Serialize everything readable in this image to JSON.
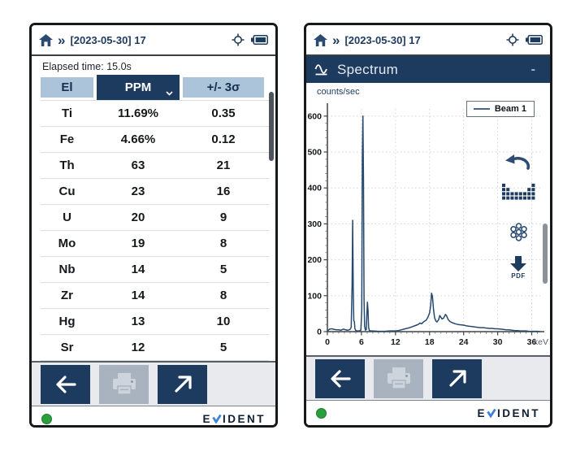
{
  "colors": {
    "navy": "#1d3a5f",
    "header_blue": "#abc4d9",
    "disabled_gray": "#a9b3c0",
    "green": "#2aa03c",
    "spectrum_line": "#27496f",
    "brand_check_blue": "#3b82d8"
  },
  "left_screen": {
    "top_bar": {
      "title": "[2023-05-30] 17"
    },
    "elapsed_time": "Elapsed time: 15.0s",
    "table": {
      "headers": {
        "el": "El",
        "ppm": "PPM",
        "sigma": "+/- 3σ"
      },
      "rows": [
        [
          "Ti",
          "11.69%",
          "0.35"
        ],
        [
          "Fe",
          "4.66%",
          "0.12"
        ],
        [
          "Th",
          "63",
          "21"
        ],
        [
          "Cu",
          "23",
          "16"
        ],
        [
          "U",
          "20",
          "9"
        ],
        [
          "Mo",
          "19",
          "8"
        ],
        [
          "Nb",
          "14",
          "5"
        ],
        [
          "Zr",
          "14",
          "8"
        ],
        [
          "Hg",
          "13",
          "10"
        ],
        [
          "Sr",
          "12",
          "5"
        ]
      ]
    }
  },
  "right_screen": {
    "top_bar": {
      "title": "[2023-05-30] 17"
    },
    "spectrum_header": {
      "title": "Spectrum",
      "minimize": "-"
    },
    "tools": {
      "pdf_label": "PDF"
    }
  },
  "footer": {
    "brand_prefix": "E",
    "brand_check": "V",
    "brand_suffix": "IDENT"
  },
  "chart_data": {
    "type": "line",
    "title": "Spectrum",
    "ylabel": "counts/sec",
    "xlabel": "keV",
    "xlim": [
      0,
      37.5
    ],
    "ylim": [
      0,
      620
    ],
    "xticks": [
      0,
      6,
      12,
      18,
      24,
      30,
      36
    ],
    "yticks": [
      0,
      100,
      200,
      300,
      400,
      500,
      600
    ],
    "grid": true,
    "legend": {
      "position": "top-right",
      "entries": [
        "Beam 1"
      ]
    },
    "series": [
      {
        "name": "Beam 1",
        "color": "#27496f",
        "points": [
          [
            0,
            2
          ],
          [
            0.4,
            7
          ],
          [
            0.8,
            8
          ],
          [
            1.2,
            6
          ],
          [
            1.6,
            5
          ],
          [
            2,
            5
          ],
          [
            2.4,
            4
          ],
          [
            2.8,
            7
          ],
          [
            3.2,
            5
          ],
          [
            3.6,
            4
          ],
          [
            4,
            6
          ],
          [
            4.2,
            12
          ],
          [
            4.35,
            130
          ],
          [
            4.45,
            310
          ],
          [
            4.55,
            120
          ],
          [
            4.65,
            30
          ],
          [
            4.75,
            28
          ],
          [
            4.85,
            8
          ],
          [
            5,
            3
          ],
          [
            5.3,
            2
          ],
          [
            5.6,
            2
          ],
          [
            5.9,
            4
          ],
          [
            6.05,
            60
          ],
          [
            6.15,
            480
          ],
          [
            6.25,
            600
          ],
          [
            6.35,
            430
          ],
          [
            6.45,
            90
          ],
          [
            6.55,
            15
          ],
          [
            6.7,
            4
          ],
          [
            6.85,
            6
          ],
          [
            6.95,
            50
          ],
          [
            7.05,
            82
          ],
          [
            7.15,
            60
          ],
          [
            7.25,
            12
          ],
          [
            7.4,
            3
          ],
          [
            7.6,
            2
          ],
          [
            8,
            2
          ],
          [
            9,
            1
          ],
          [
            10,
            1
          ],
          [
            11,
            2
          ],
          [
            12,
            2
          ],
          [
            12.5,
            3
          ],
          [
            13,
            5
          ],
          [
            13.5,
            7
          ],
          [
            14,
            9
          ],
          [
            14.5,
            11
          ],
          [
            15,
            14
          ],
          [
            15.5,
            17
          ],
          [
            16,
            20
          ],
          [
            16.3,
            24
          ],
          [
            16.6,
            22
          ],
          [
            17,
            28
          ],
          [
            17.4,
            32
          ],
          [
            17.7,
            40
          ],
          [
            18,
            52
          ],
          [
            18.2,
            75
          ],
          [
            18.35,
            107
          ],
          [
            18.5,
            98
          ],
          [
            18.7,
            60
          ],
          [
            18.9,
            38
          ],
          [
            19.1,
            30
          ],
          [
            19.3,
            27
          ],
          [
            19.6,
            33
          ],
          [
            19.8,
            45
          ],
          [
            20,
            40
          ],
          [
            20.2,
            35
          ],
          [
            20.5,
            38
          ],
          [
            20.8,
            48
          ],
          [
            21,
            44
          ],
          [
            21.3,
            33
          ],
          [
            21.6,
            28
          ],
          [
            22,
            25
          ],
          [
            22.5,
            22
          ],
          [
            23,
            20
          ],
          [
            23.5,
            19
          ],
          [
            24,
            18
          ],
          [
            24.5,
            16
          ],
          [
            25,
            15
          ],
          [
            25.5,
            14
          ],
          [
            26,
            13
          ],
          [
            26.5,
            12
          ],
          [
            27,
            11
          ],
          [
            27.5,
            11
          ],
          [
            28,
            10
          ],
          [
            28.5,
            9
          ],
          [
            29,
            9
          ],
          [
            29.5,
            8
          ],
          [
            30,
            8
          ],
          [
            30.5,
            7
          ],
          [
            31,
            6
          ],
          [
            31.5,
            5
          ],
          [
            32,
            5
          ],
          [
            32.5,
            4
          ],
          [
            33,
            3
          ],
          [
            33.5,
            3
          ],
          [
            34,
            2
          ],
          [
            34.5,
            2
          ],
          [
            35,
            2
          ],
          [
            35.5,
            1
          ],
          [
            36,
            1
          ],
          [
            36.5,
            1
          ],
          [
            37,
            1
          ],
          [
            37.5,
            0
          ]
        ]
      }
    ]
  }
}
